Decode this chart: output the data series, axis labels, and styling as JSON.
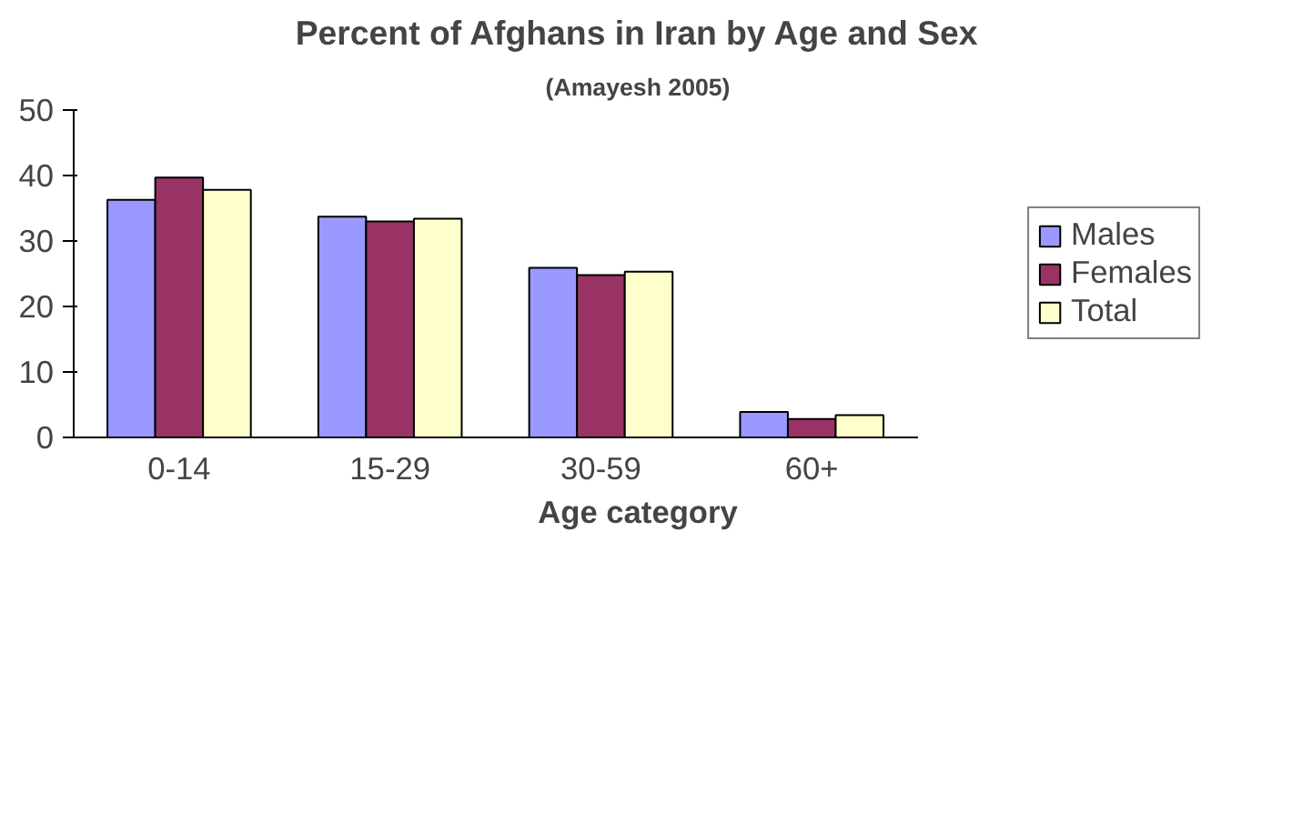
{
  "chart_data": {
    "type": "bar",
    "title": "Percent of Afghans in Iran by Age and Sex",
    "subtitle": "(Amayesh 2005)",
    "xlabel": "Age category",
    "categories": [
      "0-14",
      "15-29",
      "30-59",
      "60+"
    ],
    "series": [
      {
        "name": "Males",
        "color": "#9999ff",
        "values": [
          36.3,
          33.7,
          25.9,
          3.9
        ]
      },
      {
        "name": "Females",
        "color": "#993366",
        "values": [
          39.7,
          33.0,
          24.8,
          2.8
        ]
      },
      {
        "name": "Total",
        "color": "#ffffcc",
        "values": [
          37.8,
          33.4,
          25.3,
          3.4
        ]
      }
    ],
    "ylim": [
      0,
      50
    ],
    "yticks": [
      0,
      10,
      20,
      30,
      40,
      50
    ],
    "grid": false,
    "legend": "right"
  }
}
